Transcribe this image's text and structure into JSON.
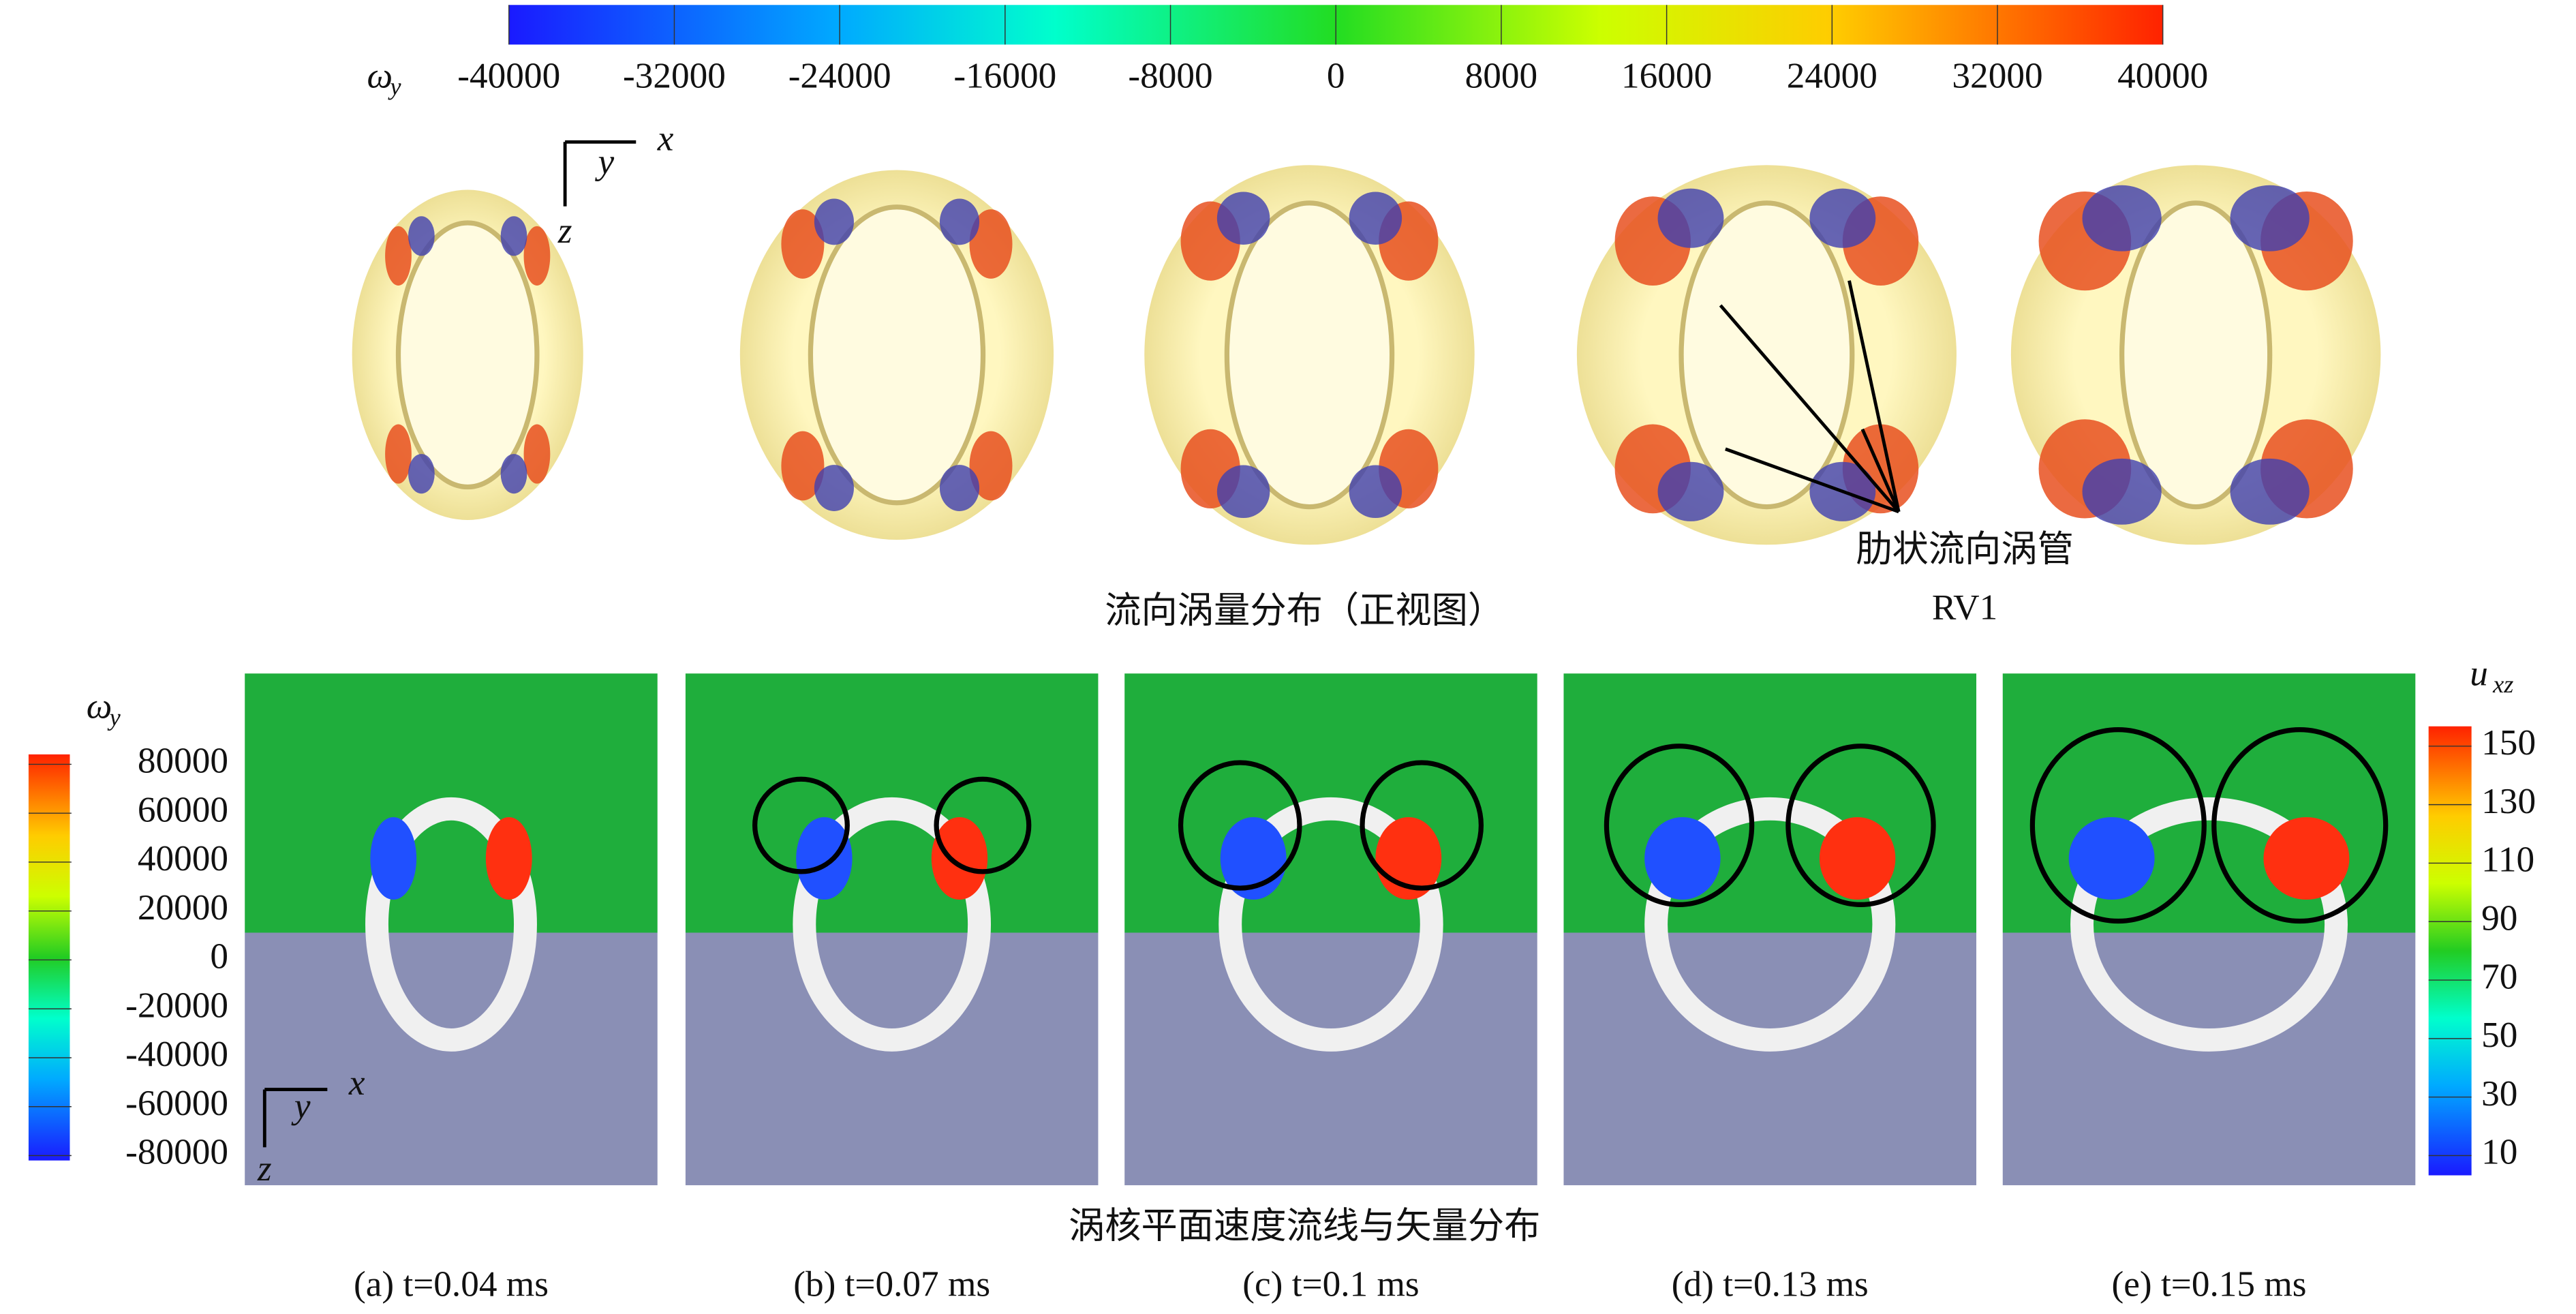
{
  "figure": {
    "top_colorbar": {
      "symbol": "ω",
      "subscript": "y",
      "lim": [
        -40000,
        40000
      ],
      "ticks": [
        -40000,
        -32000,
        -24000,
        -16000,
        -8000,
        0,
        8000,
        16000,
        24000,
        32000,
        40000
      ]
    },
    "top_axes": {
      "x": "x",
      "y": "y",
      "z": "z"
    },
    "top_caption": "流向涡量分布（正视图）",
    "annotation": {
      "line1": "肋状流向涡管",
      "line2": "RV1"
    },
    "left_colorbar": {
      "symbol": "ω",
      "subscript": "y",
      "lim": [
        -80000,
        80000
      ],
      "ticks": [
        80000,
        60000,
        40000,
        20000,
        0,
        -20000,
        -40000,
        -60000,
        -80000
      ]
    },
    "right_colorbar": {
      "symbol": "u",
      "subscript": "xz",
      "lim": [
        10,
        150
      ],
      "ticks": [
        150,
        130,
        110,
        90,
        70,
        50,
        30,
        10
      ]
    },
    "bottom_axes": {
      "x": "x",
      "y": "y",
      "z": "z"
    },
    "bottom_caption": "涡核平面速度流线与矢量分布",
    "panels": [
      "(a) t=0.04 ms",
      "(b) t=0.07 ms",
      "(c) t=0.1 ms",
      "(d) t=0.13 ms",
      "(e) t=0.15 ms"
    ]
  }
}
